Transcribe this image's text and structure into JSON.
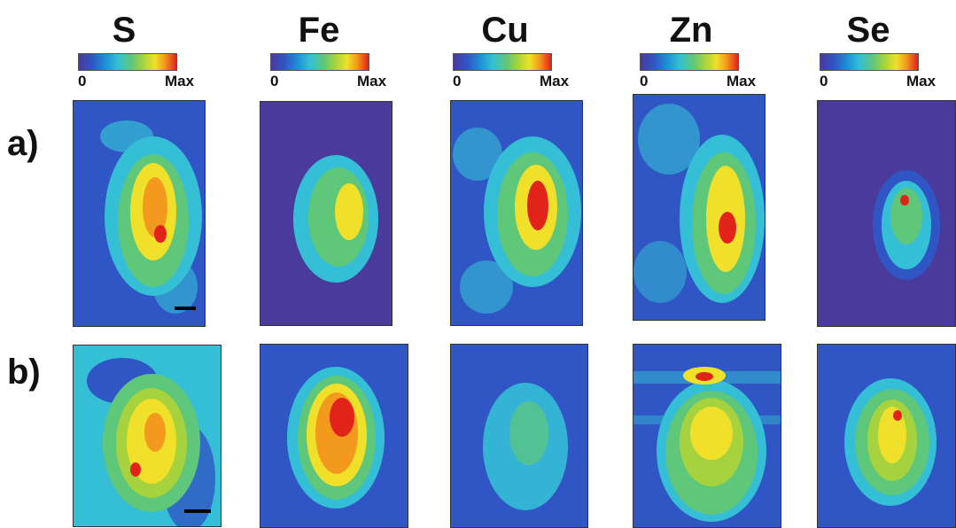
{
  "elements": [
    "S",
    "Fe",
    "Cu",
    "Zn",
    "Se"
  ],
  "colorbar": {
    "min_label": "0",
    "max_label": "Max"
  },
  "rows": [
    {
      "label": "a)"
    },
    {
      "label": "b)"
    }
  ],
  "colors": {
    "background_low": "#4a3a9c",
    "low": "#2f56c4",
    "mid_low": "#35bfd6",
    "mid": "#5fc77a",
    "mid_high": "#f0e02a",
    "high": "#f39a1e",
    "max": "#e2231a"
  }
}
